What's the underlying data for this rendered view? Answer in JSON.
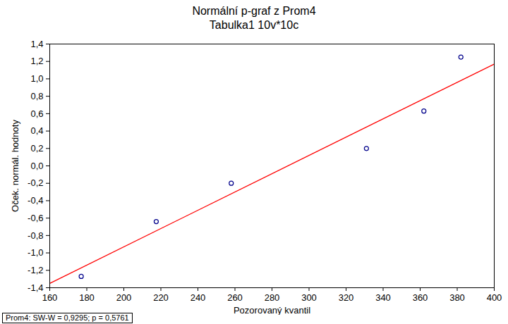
{
  "chart_data": {
    "type": "scatter",
    "title": "Normální p-graf z Prom4",
    "subtitle": "Tabulka1 10v*10c",
    "x_label": "Pozorovaný kvantil",
    "y_label": "Oček. normál. hodnoty",
    "annotation": "Prom4:  SW-W = 0,9295; p = 0,5761",
    "xlim": [
      160,
      400
    ],
    "xticks": [
      160,
      180,
      200,
      220,
      240,
      260,
      280,
      300,
      320,
      340,
      360,
      380,
      400
    ],
    "ylim": [
      -1.4,
      1.4
    ],
    "yticks": [
      {
        "value": -1.4,
        "label": "-1,4"
      },
      {
        "value": -1.2,
        "label": "-1,2"
      },
      {
        "value": -1.0,
        "label": "-1,0"
      },
      {
        "value": -0.8,
        "label": "-0,8"
      },
      {
        "value": -0.6,
        "label": "-0,6"
      },
      {
        "value": -0.4,
        "label": "-0,4"
      },
      {
        "value": -0.2,
        "label": "-0,2"
      },
      {
        "value": 0,
        "label": "0,0"
      },
      {
        "value": 0.2,
        "label": "0,2"
      },
      {
        "value": 0.4,
        "label": "0,4"
      },
      {
        "value": 0.6,
        "label": "0,6"
      },
      {
        "value": 0.8,
        "label": "0,8"
      },
      {
        "value": 1.0,
        "label": "1,0"
      },
      {
        "value": 1.2,
        "label": "1,2"
      },
      {
        "value": 1.4,
        "label": "1,4"
      }
    ],
    "grid": false,
    "series": [
      {
        "type": "scatter",
        "color": "#00008b",
        "marker": "circle",
        "x": [
          177,
          217.5,
          258,
          331,
          362,
          382
        ],
        "values": [
          -1.27,
          -0.64,
          -0.2,
          0.2,
          0.63,
          1.25
        ]
      },
      {
        "type": "line",
        "color": "#ff0000",
        "line_style": "solid",
        "x": [
          160,
          400
        ],
        "values": [
          -1.35,
          1.17
        ]
      }
    ]
  }
}
